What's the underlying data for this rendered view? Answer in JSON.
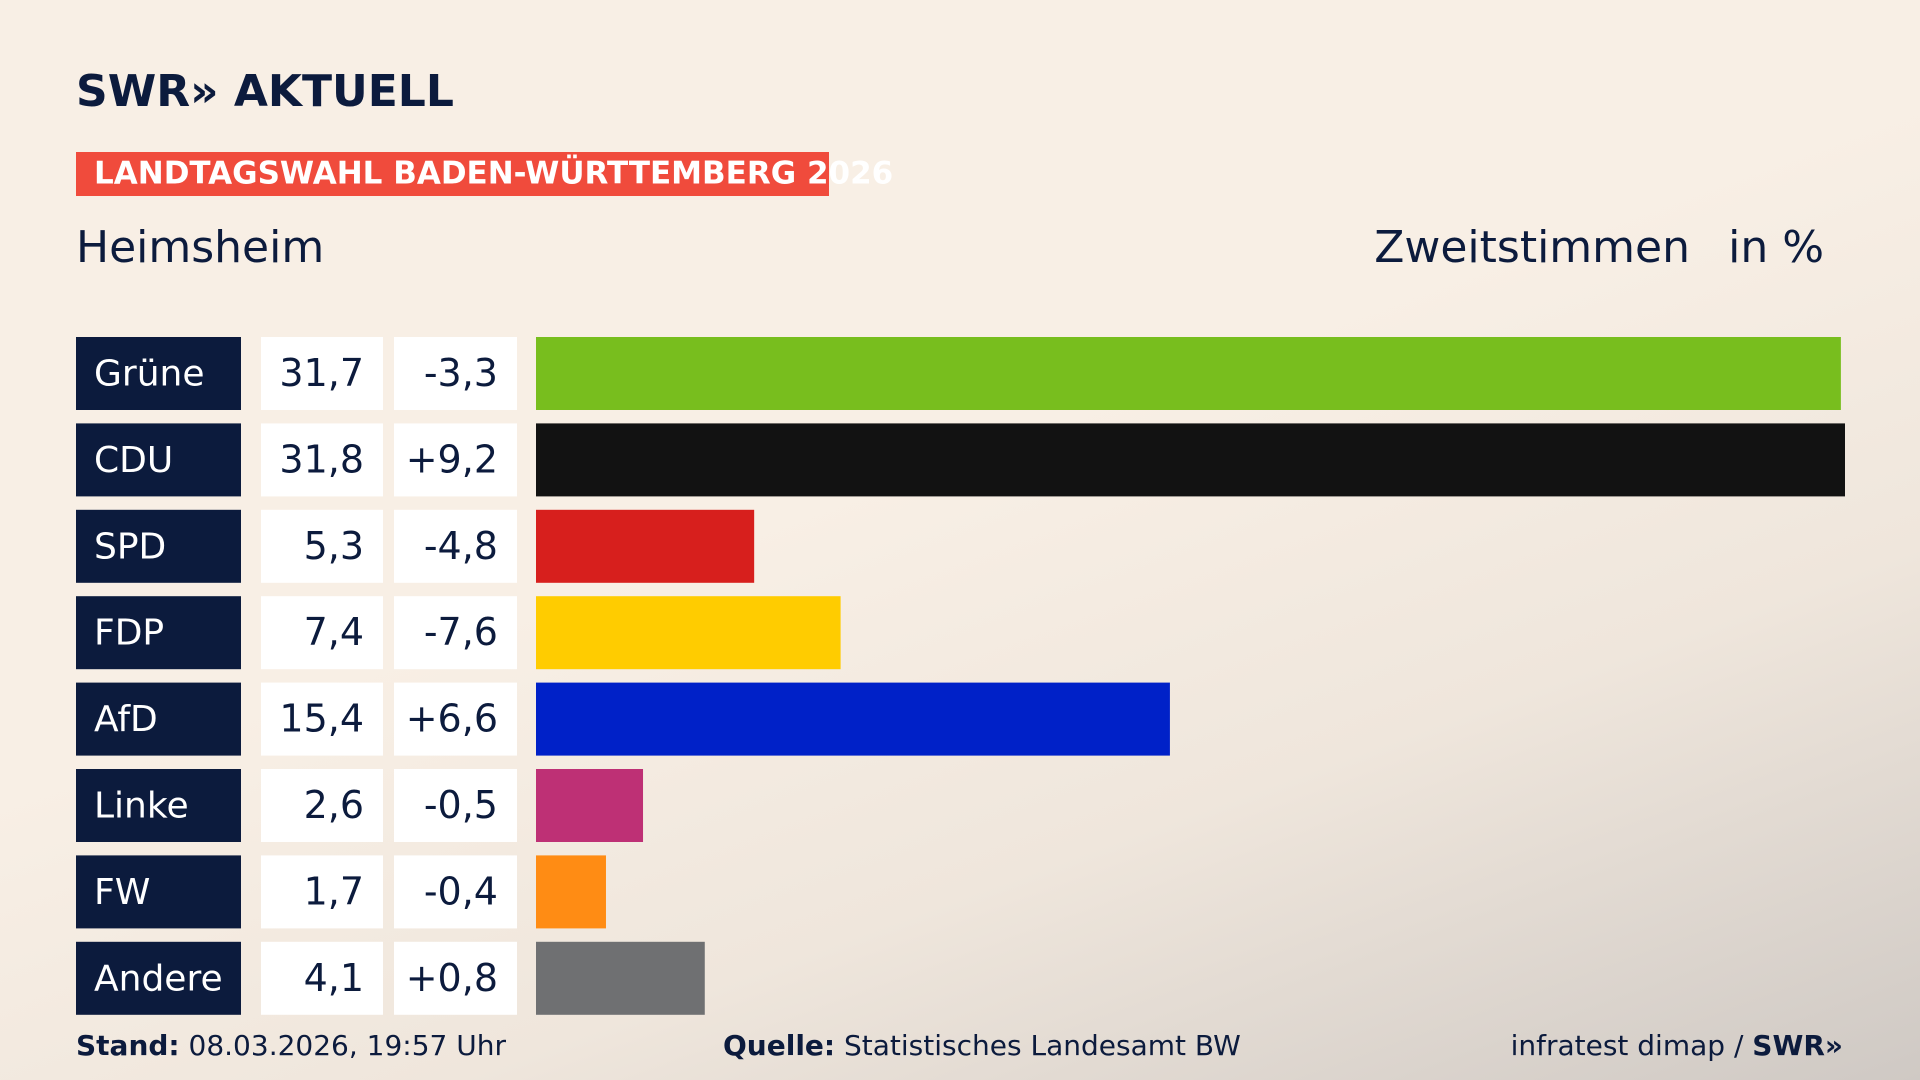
{
  "logo": "SWR» AKTUELL",
  "chart_data": {
    "type": "bar",
    "orientation": "horizontal",
    "title": "LANDTAGSWAHL BADEN-WÜRTTEMBERG 2026",
    "subtitle": "Heimsheim",
    "measure": "Zweitstimmen",
    "unit": "in %",
    "categories": [
      "Grüne",
      "CDU",
      "SPD",
      "FDP",
      "AfD",
      "Linke",
      "FW",
      "Andere"
    ],
    "values": [
      31.7,
      31.8,
      5.3,
      7.4,
      15.4,
      2.6,
      1.7,
      4.1
    ],
    "value_labels": [
      "31,7",
      "31,8",
      "5,3",
      "7,4",
      "15,4",
      "2,6",
      "1,7",
      "4,1"
    ],
    "changes": [
      -3.3,
      9.2,
      -4.8,
      -7.6,
      6.6,
      -0.5,
      -0.4,
      0.8
    ],
    "change_labels": [
      "-3,3",
      "+9,2",
      "-4,8",
      "-7,6",
      "+6,6",
      "-0,5",
      "-0,4",
      "+0,8"
    ],
    "colors": [
      "#78be1e",
      "#121212",
      "#d71f1d",
      "#ffcc00",
      "#0021c8",
      "#be3075",
      "#ff8c14",
      "#6f7072"
    ]
  },
  "footer": {
    "stand_label": "Stand:",
    "stand": "08.03.2026, 19:57 Uhr",
    "source_label": "Quelle:",
    "source": "Statistisches Landesamt BW",
    "credit": "infratest dimap /",
    "credit_logo": "SWR»"
  }
}
